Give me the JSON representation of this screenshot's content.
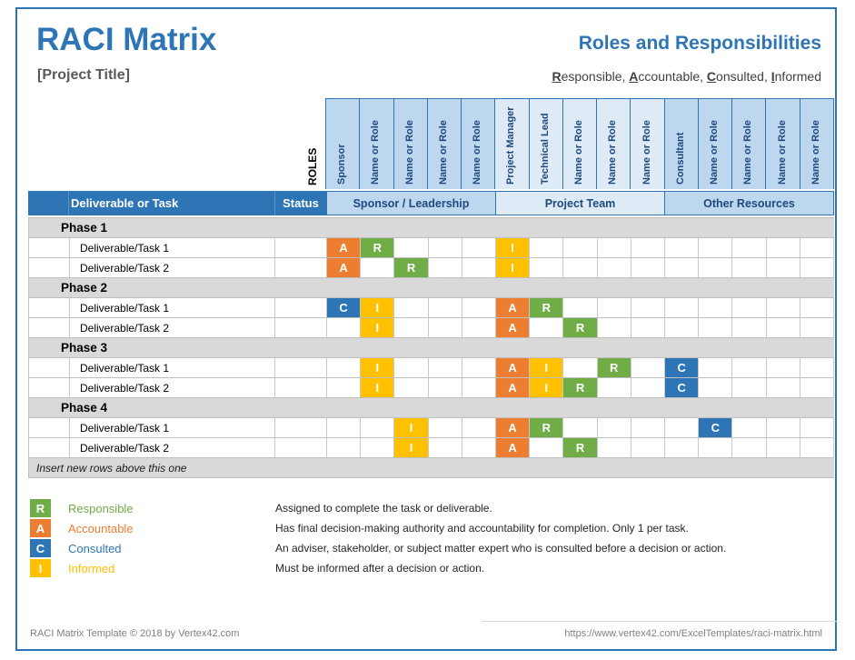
{
  "header": {
    "title": "RACI Matrix",
    "project_title": "[Project Title]",
    "right_title": "Roles and Responsibilities",
    "raci_words": [
      {
        "lead": "R",
        "rest": "esponsible, "
      },
      {
        "lead": "A",
        "rest": "ccountable, "
      },
      {
        "lead": "C",
        "rest": "onsulted, "
      },
      {
        "lead": "I",
        "rest": "nformed"
      }
    ]
  },
  "roles_header": {
    "corner_label": "ROLES",
    "columns": [
      {
        "label": "Sponsor",
        "group": 1
      },
      {
        "label": "Name or Role",
        "group": 1
      },
      {
        "label": "Name or Role",
        "group": 1
      },
      {
        "label": "Name or Role",
        "group": 1
      },
      {
        "label": "Name or Role",
        "group": 1
      },
      {
        "label": "Project Manager",
        "group": 2
      },
      {
        "label": "Technical Lead",
        "group": 2
      },
      {
        "label": "Name or Role",
        "group": 2
      },
      {
        "label": "Name or Role",
        "group": 2
      },
      {
        "label": "Name or Role",
        "group": 2
      },
      {
        "label": "Consultant",
        "group": 3
      },
      {
        "label": "Name or Role",
        "group": 3
      },
      {
        "label": "Name or Role",
        "group": 3
      },
      {
        "label": "Name or Role",
        "group": 3
      },
      {
        "label": "Name or Role",
        "group": 3
      }
    ]
  },
  "table": {
    "deliverable_header": "Deliverable or Task",
    "status_header": "Status",
    "groups": [
      {
        "label": "Sponsor / Leadership",
        "shade": "dark"
      },
      {
        "label": "Project Team",
        "shade": "light"
      },
      {
        "label": "Other Resources",
        "shade": "dark"
      }
    ],
    "rows": [
      {
        "type": "phase",
        "label": "Phase 1"
      },
      {
        "type": "task",
        "label": "Deliverable/Task 1",
        "marks": [
          "A",
          "R",
          "",
          "",
          "",
          "I",
          "",
          "",
          "",
          "",
          "",
          "",
          "",
          "",
          ""
        ]
      },
      {
        "type": "task",
        "label": "Deliverable/Task 2",
        "marks": [
          "A",
          "",
          "R",
          "",
          "",
          "I",
          "",
          "",
          "",
          "",
          "",
          "",
          "",
          "",
          ""
        ]
      },
      {
        "type": "phase",
        "label": "Phase 2"
      },
      {
        "type": "task",
        "label": "Deliverable/Task 1",
        "marks": [
          "C",
          "I",
          "",
          "",
          "",
          "A",
          "R",
          "",
          "",
          "",
          "",
          "",
          "",
          "",
          ""
        ]
      },
      {
        "type": "task",
        "label": "Deliverable/Task 2",
        "marks": [
          "",
          "I",
          "",
          "",
          "",
          "A",
          "",
          "R",
          "",
          "",
          "",
          "",
          "",
          "",
          ""
        ]
      },
      {
        "type": "phase",
        "label": "Phase 3"
      },
      {
        "type": "task",
        "label": "Deliverable/Task 1",
        "marks": [
          "",
          "I",
          "",
          "",
          "",
          "A",
          "I",
          "",
          "R",
          "",
          "C",
          "",
          "",
          "",
          ""
        ]
      },
      {
        "type": "task",
        "label": "Deliverable/Task 2",
        "marks": [
          "",
          "I",
          "",
          "",
          "",
          "A",
          "I",
          "R",
          "",
          "",
          "C",
          "",
          "",
          "",
          ""
        ]
      },
      {
        "type": "phase",
        "label": "Phase 4"
      },
      {
        "type": "task",
        "label": "Deliverable/Task 1",
        "marks": [
          "",
          "",
          "I",
          "",
          "",
          "A",
          "R",
          "",
          "",
          "",
          "",
          "C",
          "",
          "",
          ""
        ]
      },
      {
        "type": "task",
        "label": "Deliverable/Task 2",
        "marks": [
          "",
          "",
          "I",
          "",
          "",
          "A",
          "",
          "R",
          "",
          "",
          "",
          "",
          "",
          "",
          ""
        ]
      },
      {
        "type": "note",
        "label": "Insert new rows above this one"
      }
    ]
  },
  "legend": {
    "items": [
      {
        "letter": "R",
        "label": "Responsible",
        "color": "#70AD47",
        "description": "Assigned to complete the task or deliverable."
      },
      {
        "letter": "A",
        "label": "Accountable",
        "color": "#ED7D31",
        "description": "Has final decision-making authority and accountability for completion. Only 1 per task."
      },
      {
        "letter": "C",
        "label": "Consulted",
        "color": "#2E75B6",
        "description": "An adviser, stakeholder, or subject matter expert who is consulted before a decision or action."
      },
      {
        "letter": "I",
        "label": "Informed",
        "color": "#FFC000",
        "description": "Must be informed after a decision or action."
      }
    ]
  },
  "footer": {
    "left": "RACI Matrix Template © 2018 by Vertex42.com",
    "right": "https://www.vertex42.com/ExcelTemplates/raci-matrix.html"
  },
  "colors": {
    "accent": "#2E75B6",
    "R": "#70AD47",
    "A": "#ED7D31",
    "C": "#2E75B6",
    "I": "#FFC000",
    "group_dark": "#BDD7EE",
    "group_light": "#DEEBF7",
    "phase_bg": "#D9D9D9"
  }
}
